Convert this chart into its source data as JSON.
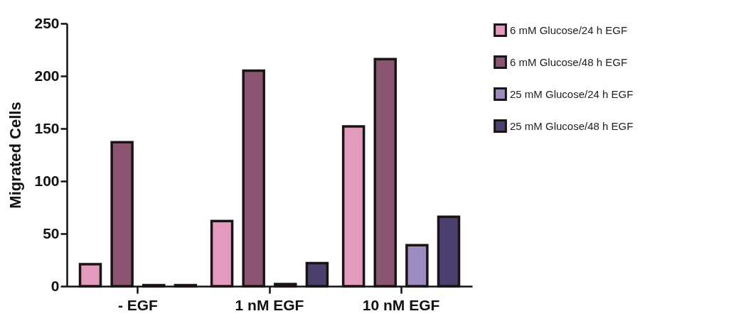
{
  "chart_data": {
    "type": "bar",
    "ylabel": "Migrated Cells",
    "categories": [
      "- EGF",
      "1 nM EGF",
      "10 nM EGF"
    ],
    "series": [
      {
        "name": "6 mM Glucose/24 h EGF",
        "color": "#e39bbd",
        "values": [
          21,
          62,
          152
        ]
      },
      {
        "name": "6 mM Glucose/48 h EGF",
        "color": "#8b5470",
        "values": [
          137,
          205,
          216
        ]
      },
      {
        "name": "25 mM Glucose/24 h EGF",
        "color": "#9a8cbf",
        "values": [
          1,
          2,
          39
        ]
      },
      {
        "name": "25 mM Glucose/48 h EGF",
        "color": "#4b3f6e",
        "values": [
          1,
          22,
          66
        ]
      }
    ],
    "ylim": [
      0,
      250
    ],
    "yticks": [
      0,
      50,
      100,
      150,
      200,
      250
    ],
    "grid": false,
    "legend": "top right"
  }
}
